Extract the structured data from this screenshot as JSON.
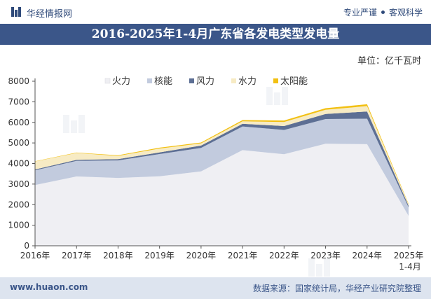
{
  "header": {
    "brand": "华经情报网",
    "slogan_left": "专业严谨",
    "slogan_right": "客观科学"
  },
  "title": "2016-2025年1-4月广东省各发电类型发电量",
  "unit": "单位：亿千瓦时",
  "footer": {
    "site": "www.huaon.com",
    "source": "数据来源：国家统计局，华经产业研究院整理"
  },
  "colors": {
    "header_bar": "#3b5689",
    "footer_bar": "#dde4ef",
    "brand_text": "#2f4a7a"
  },
  "chart_data": {
    "type": "area",
    "stacked": true,
    "categories": [
      "2016年",
      "2017年",
      "2018年",
      "2019年",
      "2020年",
      "2021年",
      "2022年",
      "2023年",
      "2024年",
      "2025年\n1-4月"
    ],
    "ylim": [
      0,
      8000
    ],
    "yticks": [
      0,
      1000,
      2000,
      3000,
      4000,
      5000,
      6000,
      7000,
      8000
    ],
    "grid": false,
    "legend_position": "top",
    "series": [
      {
        "name": "火力",
        "color": "#efeff3",
        "values": [
          2950,
          3370,
          3300,
          3380,
          3620,
          4650,
          4450,
          4960,
          4940,
          1450
        ]
      },
      {
        "name": "核能",
        "color": "#c2cbde",
        "values": [
          720,
          760,
          850,
          1080,
          1140,
          1150,
          1180,
          1200,
          1240,
          420
        ]
      },
      {
        "name": "风力",
        "color": "#5d6f94",
        "values": [
          40,
          50,
          60,
          80,
          110,
          130,
          190,
          250,
          350,
          80
        ]
      },
      {
        "name": "水力",
        "color": "#f7ebc4",
        "values": [
          390,
          330,
          160,
          190,
          110,
          120,
          200,
          200,
          260,
          60
        ]
      },
      {
        "name": "太阳能",
        "color": "#f2c012",
        "values": [
          10,
          20,
          30,
          40,
          40,
          60,
          70,
          80,
          90,
          30
        ]
      }
    ]
  }
}
